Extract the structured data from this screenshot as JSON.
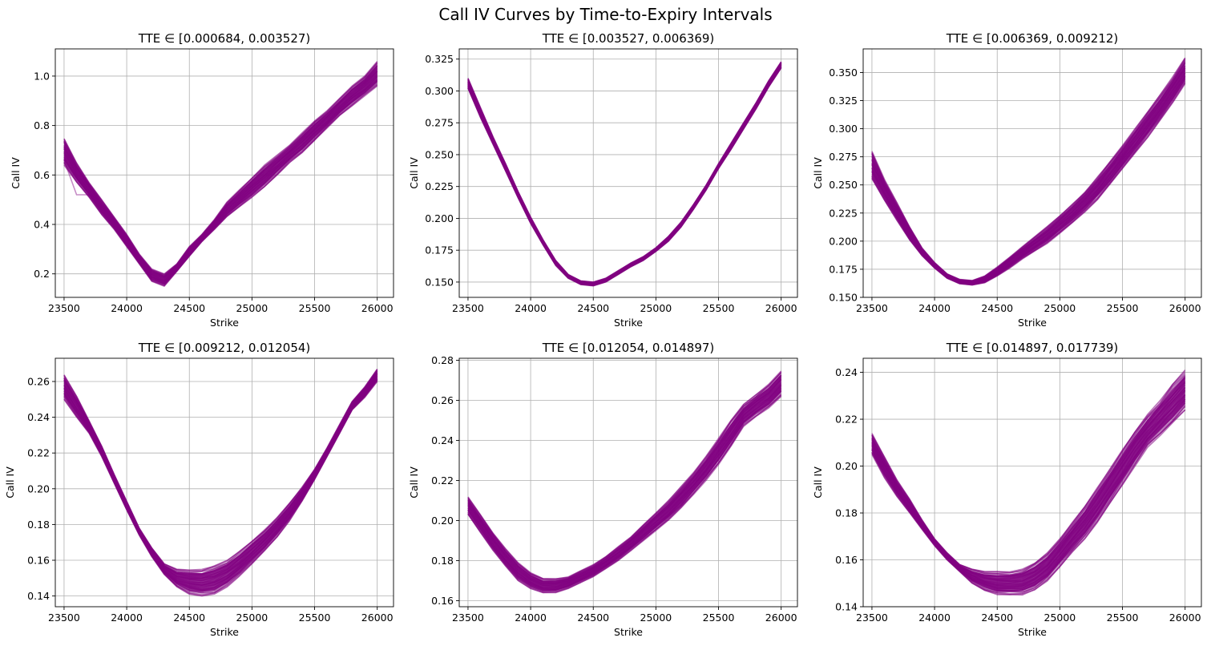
{
  "figure": {
    "title": "Call IV Curves by Time-to-Expiry Intervals"
  },
  "chart_data": [
    {
      "type": "line",
      "title": "TTE ∈ [0.000684, 0.003527)",
      "xlabel": "Strike",
      "ylabel": "Call IV",
      "xlim": [
        23430,
        26130
      ],
      "ylim": [
        0.105,
        1.11
      ],
      "xticks": [
        23500,
        24000,
        24500,
        25000,
        25500,
        26000
      ],
      "yticks": [
        0.2,
        0.4,
        0.6,
        0.8,
        1.0
      ],
      "ytick_labels": [
        "0.2",
        "0.4",
        "0.6",
        "0.8",
        "1.0"
      ],
      "grid": true,
      "line_color": "#800080",
      "x": [
        23500,
        23600,
        23700,
        23800,
        23900,
        24000,
        24100,
        24200,
        24300,
        24400,
        24500,
        24600,
        24700,
        24800,
        24900,
        25000,
        25100,
        25200,
        25300,
        25400,
        25500,
        25600,
        25700,
        25800,
        25900,
        26000
      ],
      "band_lower": [
        0.64,
        0.57,
        0.51,
        0.44,
        0.38,
        0.31,
        0.24,
        0.17,
        0.15,
        0.21,
        0.27,
        0.33,
        0.38,
        0.43,
        0.47,
        0.51,
        0.55,
        0.6,
        0.65,
        0.69,
        0.74,
        0.79,
        0.84,
        0.88,
        0.92,
        0.96
      ],
      "band_upper": [
        0.75,
        0.65,
        0.57,
        0.5,
        0.43,
        0.36,
        0.28,
        0.22,
        0.2,
        0.24,
        0.31,
        0.36,
        0.42,
        0.49,
        0.54,
        0.59,
        0.64,
        0.68,
        0.72,
        0.77,
        0.82,
        0.86,
        0.91,
        0.96,
        1.0,
        1.06
      ],
      "outlier": {
        "x": [
          23500,
          23600,
          23700,
          23800
        ],
        "y": [
          0.66,
          0.52,
          0.52,
          0.47
        ]
      }
    },
    {
      "type": "line",
      "title": "TTE ∈ [0.003527, 0.006369)",
      "xlabel": "Strike",
      "ylabel": "Call IV",
      "xlim": [
        23430,
        26130
      ],
      "ylim": [
        0.138,
        0.333
      ],
      "xticks": [
        23500,
        24000,
        24500,
        25000,
        25500,
        26000
      ],
      "yticks": [
        0.15,
        0.175,
        0.2,
        0.225,
        0.25,
        0.275,
        0.3,
        0.325
      ],
      "ytick_labels": [
        "0.150",
        "0.175",
        "0.200",
        "0.225",
        "0.250",
        "0.275",
        "0.300",
        "0.325"
      ],
      "grid": true,
      "line_color": "#800080",
      "x": [
        23500,
        23600,
        23700,
        23800,
        23900,
        24000,
        24100,
        24200,
        24300,
        24400,
        24500,
        24600,
        24700,
        24800,
        24900,
        25000,
        25100,
        25200,
        25300,
        25400,
        25500,
        25600,
        25700,
        25800,
        25900,
        26000
      ],
      "band_lower": [
        0.302,
        0.279,
        0.258,
        0.237,
        0.216,
        0.196,
        0.179,
        0.163,
        0.153,
        0.148,
        0.147,
        0.15,
        0.156,
        0.162,
        0.167,
        0.174,
        0.182,
        0.193,
        0.207,
        0.222,
        0.239,
        0.254,
        0.27,
        0.286,
        0.303,
        0.318
      ],
      "band_upper": [
        0.31,
        0.287,
        0.264,
        0.243,
        0.221,
        0.201,
        0.183,
        0.167,
        0.156,
        0.151,
        0.15,
        0.153,
        0.159,
        0.165,
        0.17,
        0.177,
        0.186,
        0.197,
        0.211,
        0.226,
        0.243,
        0.259,
        0.275,
        0.291,
        0.308,
        0.323
      ]
    },
    {
      "type": "line",
      "title": "TTE ∈ [0.006369, 0.009212)",
      "xlabel": "Strike",
      "ylabel": "Call IV",
      "xlim": [
        23430,
        26130
      ],
      "ylim": [
        0.15,
        0.371
      ],
      "xticks": [
        23500,
        24000,
        24500,
        25000,
        25500,
        26000
      ],
      "yticks": [
        0.15,
        0.175,
        0.2,
        0.225,
        0.25,
        0.275,
        0.3,
        0.325,
        0.35
      ],
      "ytick_labels": [
        "0.150",
        "0.175",
        "0.200",
        "0.225",
        "0.250",
        "0.275",
        "0.300",
        "0.325",
        "0.350"
      ],
      "grid": true,
      "line_color": "#800080",
      "x": [
        23500,
        23600,
        23700,
        23800,
        23900,
        24000,
        24100,
        24200,
        24300,
        24400,
        24500,
        24600,
        24700,
        24800,
        24900,
        25000,
        25100,
        25200,
        25300,
        25400,
        25500,
        25600,
        25700,
        25800,
        25900,
        26000
      ],
      "band_lower": [
        0.255,
        0.236,
        0.218,
        0.201,
        0.187,
        0.176,
        0.167,
        0.162,
        0.161,
        0.163,
        0.169,
        0.176,
        0.184,
        0.191,
        0.198,
        0.207,
        0.216,
        0.226,
        0.237,
        0.25,
        0.264,
        0.278,
        0.292,
        0.307,
        0.323,
        0.34
      ],
      "band_upper": [
        0.28,
        0.255,
        0.234,
        0.213,
        0.194,
        0.181,
        0.171,
        0.166,
        0.165,
        0.169,
        0.177,
        0.186,
        0.195,
        0.204,
        0.213,
        0.223,
        0.233,
        0.244,
        0.257,
        0.271,
        0.285,
        0.3,
        0.315,
        0.33,
        0.346,
        0.363
      ]
    },
    {
      "type": "line",
      "title": "TTE ∈ [0.009212, 0.012054)",
      "xlabel": "Strike",
      "ylabel": "Call IV",
      "xlim": [
        23430,
        26130
      ],
      "ylim": [
        0.134,
        0.273
      ],
      "xticks": [
        23500,
        24000,
        24500,
        25000,
        25500,
        26000
      ],
      "yticks": [
        0.14,
        0.16,
        0.18,
        0.2,
        0.22,
        0.24,
        0.26
      ],
      "ytick_labels": [
        "0.14",
        "0.16",
        "0.18",
        "0.20",
        "0.22",
        "0.24",
        "0.26"
      ],
      "grid": true,
      "line_color": "#800080",
      "x": [
        23500,
        23600,
        23700,
        23800,
        23900,
        24000,
        24100,
        24200,
        24300,
        24400,
        24500,
        24600,
        24700,
        24800,
        24900,
        25000,
        25100,
        25200,
        25300,
        25400,
        25500,
        25600,
        25700,
        25800,
        25900,
        26000
      ],
      "band_lower": [
        0.25,
        0.24,
        0.231,
        0.218,
        0.203,
        0.188,
        0.174,
        0.162,
        0.152,
        0.145,
        0.141,
        0.14,
        0.141,
        0.145,
        0.151,
        0.158,
        0.165,
        0.173,
        0.182,
        0.193,
        0.205,
        0.218,
        0.231,
        0.244,
        0.251,
        0.26
      ],
      "band_upper": [
        0.264,
        0.252,
        0.238,
        0.224,
        0.208,
        0.193,
        0.178,
        0.167,
        0.158,
        0.155,
        0.155,
        0.155,
        0.157,
        0.16,
        0.165,
        0.171,
        0.177,
        0.184,
        0.192,
        0.201,
        0.211,
        0.223,
        0.236,
        0.249,
        0.257,
        0.267
      ]
    },
    {
      "type": "line",
      "title": "TTE ∈ [0.012054, 0.014897)",
      "xlabel": "Strike",
      "ylabel": "Call IV",
      "xlim": [
        23430,
        26130
      ],
      "ylim": [
        0.157,
        0.281
      ],
      "xticks": [
        23500,
        24000,
        24500,
        25000,
        25500,
        26000
      ],
      "yticks": [
        0.16,
        0.18,
        0.2,
        0.22,
        0.24,
        0.26,
        0.28
      ],
      "ytick_labels": [
        "0.16",
        "0.18",
        "0.20",
        "0.22",
        "0.24",
        "0.26",
        "0.28"
      ],
      "grid": true,
      "line_color": "#800080",
      "x": [
        23500,
        23600,
        23700,
        23800,
        23900,
        24000,
        24100,
        24200,
        24300,
        24400,
        24500,
        24600,
        24700,
        24800,
        24900,
        25000,
        25100,
        25200,
        25300,
        25400,
        25500,
        25600,
        25700,
        25800,
        25900,
        26000
      ],
      "band_lower": [
        0.203,
        0.194,
        0.185,
        0.177,
        0.17,
        0.166,
        0.164,
        0.164,
        0.166,
        0.169,
        0.172,
        0.176,
        0.18,
        0.185,
        0.19,
        0.195,
        0.2,
        0.206,
        0.213,
        0.22,
        0.228,
        0.237,
        0.247,
        0.252,
        0.256,
        0.262
      ],
      "band_upper": [
        0.212,
        0.203,
        0.194,
        0.186,
        0.179,
        0.174,
        0.171,
        0.171,
        0.172,
        0.175,
        0.178,
        0.182,
        0.187,
        0.192,
        0.198,
        0.204,
        0.21,
        0.217,
        0.224,
        0.232,
        0.241,
        0.25,
        0.258,
        0.263,
        0.268,
        0.275
      ]
    },
    {
      "type": "line",
      "title": "TTE ∈ [0.014897, 0.017739)",
      "xlabel": "Strike",
      "ylabel": "Call IV",
      "xlim": [
        23430,
        26130
      ],
      "ylim": [
        0.14,
        0.246
      ],
      "xticks": [
        23500,
        24000,
        24500,
        25000,
        25500,
        26000
      ],
      "yticks": [
        0.14,
        0.16,
        0.18,
        0.2,
        0.22,
        0.24
      ],
      "ytick_labels": [
        "0.14",
        "0.16",
        "0.18",
        "0.20",
        "0.22",
        "0.24"
      ],
      "grid": true,
      "line_color": "#800080",
      "x": [
        23500,
        23600,
        23700,
        23800,
        23900,
        24000,
        24100,
        24200,
        24300,
        24400,
        24500,
        24600,
        24700,
        24800,
        24900,
        25000,
        25100,
        25200,
        25300,
        25400,
        25500,
        25600,
        25700,
        25800,
        25900,
        26000
      ],
      "band_lower": [
        0.205,
        0.195,
        0.187,
        0.18,
        0.173,
        0.166,
        0.16,
        0.155,
        0.15,
        0.147,
        0.145,
        0.145,
        0.145,
        0.147,
        0.151,
        0.157,
        0.163,
        0.169,
        0.176,
        0.184,
        0.192,
        0.2,
        0.208,
        0.213,
        0.218,
        0.224
      ],
      "band_upper": [
        0.214,
        0.204,
        0.194,
        0.186,
        0.177,
        0.169,
        0.163,
        0.158,
        0.156,
        0.155,
        0.155,
        0.155,
        0.156,
        0.159,
        0.163,
        0.169,
        0.176,
        0.183,
        0.191,
        0.199,
        0.207,
        0.215,
        0.222,
        0.228,
        0.235,
        0.241
      ]
    }
  ]
}
